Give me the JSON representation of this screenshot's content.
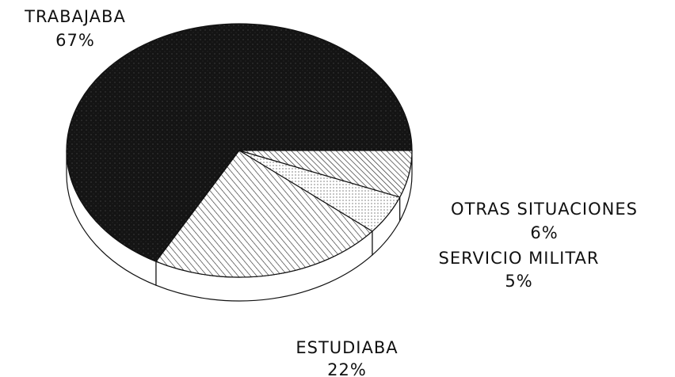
{
  "chart_data": {
    "type": "pie3d",
    "categories": [
      "TRABAJABA",
      "ESTUDIABA",
      "SERVICIO MILITAR",
      "OTRAS SITUACIONES"
    ],
    "values": [
      67,
      22,
      5,
      6
    ],
    "value_labels": [
      "67%",
      "22%",
      "5%",
      "6%"
    ]
  }
}
